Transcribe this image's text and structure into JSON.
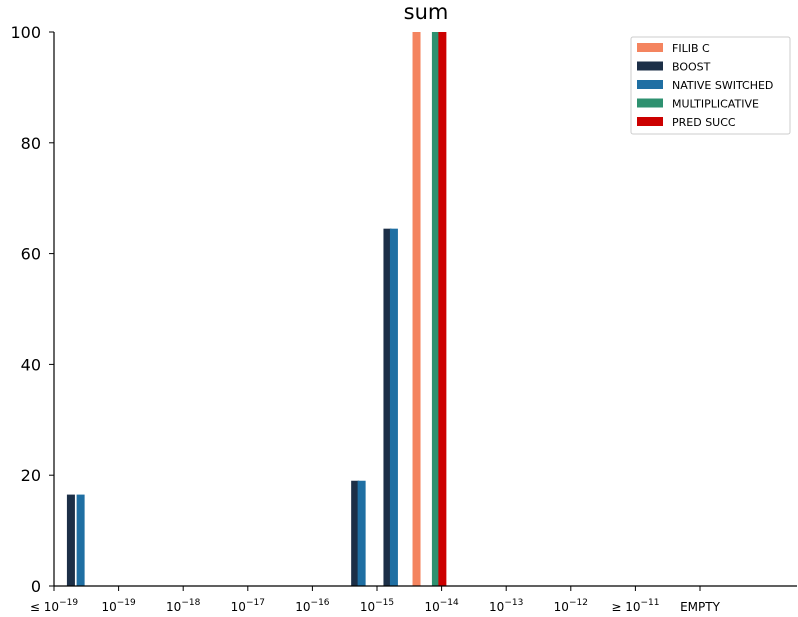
{
  "chart_data": {
    "type": "bar",
    "title": "sum",
    "xlabel": "",
    "ylabel": "",
    "ylim": [
      0,
      100
    ],
    "yticks": [
      0,
      20,
      40,
      60,
      80,
      100
    ],
    "categories": [
      {
        "label": "≤ 10",
        "exp": "−19"
      },
      {
        "label": "10",
        "exp": "−19"
      },
      {
        "label": "10",
        "exp": "−18"
      },
      {
        "label": "10",
        "exp": "−17"
      },
      {
        "label": "10",
        "exp": "−16"
      },
      {
        "label": "10",
        "exp": "−15"
      },
      {
        "label": "10",
        "exp": "−14"
      },
      {
        "label": "10",
        "exp": "−13"
      },
      {
        "label": "10",
        "exp": "−12"
      },
      {
        "label": "≥ 10",
        "exp": "−11"
      },
      {
        "label": "EMPTY",
        "exp": ""
      }
    ],
    "series": [
      {
        "name": "FILIB C",
        "color": "#f4845f",
        "bars": [
          {
            "pos": 5.55,
            "value": 100
          }
        ]
      },
      {
        "name": "BOOST",
        "color": "#1c2f47",
        "bars": [
          {
            "pos": 0.2,
            "value": 16.5
          },
          {
            "pos": 4.6,
            "value": 19
          },
          {
            "pos": 5.1,
            "value": 64.5
          }
        ]
      },
      {
        "name": "NATIVE SWITCHED",
        "color": "#1f6fa3",
        "bars": [
          {
            "pos": 0.35,
            "value": 16.5
          },
          {
            "pos": 4.7,
            "value": 19
          },
          {
            "pos": 5.2,
            "value": 64.5
          }
        ]
      },
      {
        "name": "MULTIPLICATIVE",
        "color": "#2e9170",
        "bars": [
          {
            "pos": 5.85,
            "value": 100
          }
        ]
      },
      {
        "name": "PRED SUCC",
        "color": "#cc0000",
        "bars": [
          {
            "pos": 5.95,
            "value": 100
          }
        ]
      }
    ],
    "grid": false,
    "legend_position": "top-right"
  }
}
